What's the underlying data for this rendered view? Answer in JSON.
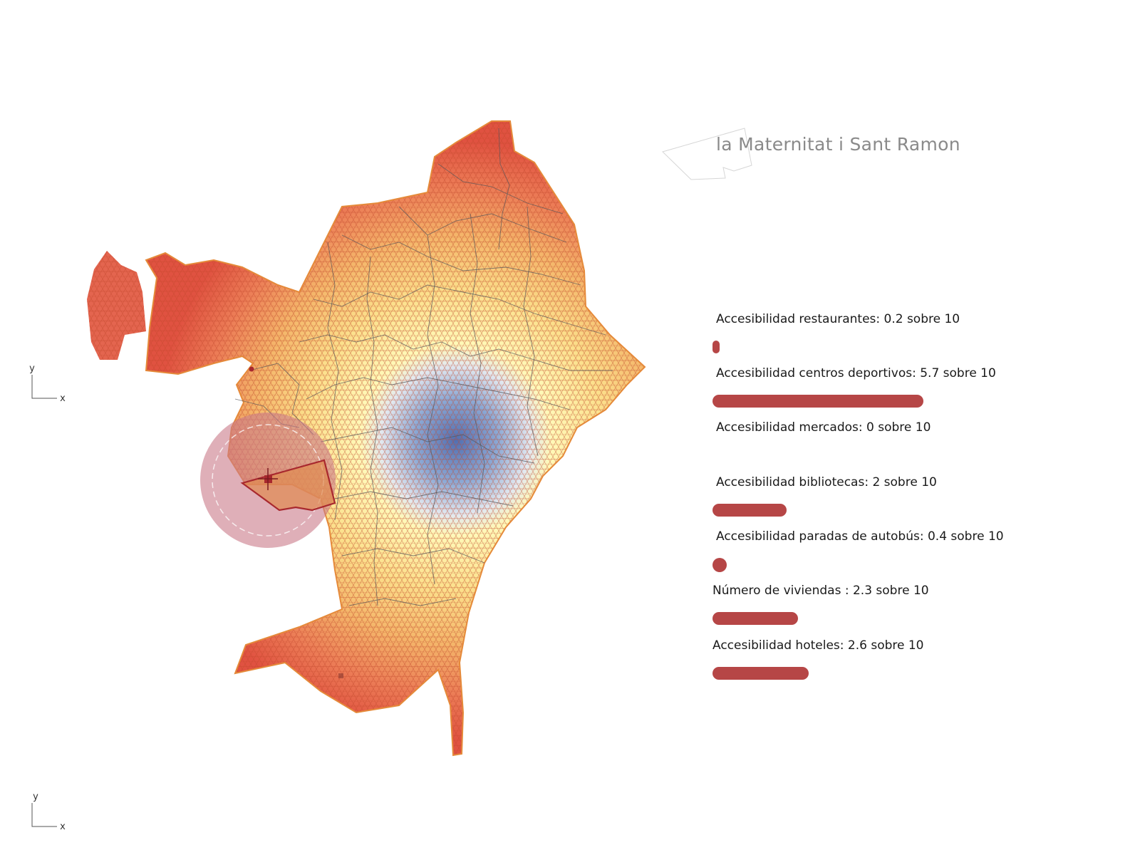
{
  "district": {
    "name": "la Maternitat i Sant Ramon"
  },
  "metrics": [
    {
      "label": "Accesibilidad restaurantes: 0.2 sobre 10",
      "value": 0.2,
      "max": 10
    },
    {
      "label": "Accesibilidad centros deportivos: 5.7 sobre 10",
      "value": 5.7,
      "max": 10
    },
    {
      "label": "Accesibilidad mercados: 0 sobre 10",
      "value": 0,
      "max": 10
    },
    {
      "label": "Accesibilidad bibliotecas: 2 sobre 10",
      "value": 2,
      "max": 10
    },
    {
      "label": "Accesibilidad paradas de autobús: 0.4 sobre 10",
      "value": 0.4,
      "max": 10
    },
    {
      "label": "Número de viviendas : 2.3 sobre 10",
      "value": 2.3,
      "max": 10
    },
    {
      "label": "Accesibilidad hoteles: 2.6 sobre 10",
      "value": 2.6,
      "max": 10
    }
  ],
  "axes": [
    {
      "y_label": "y",
      "x_label": "x"
    },
    {
      "y_label": "y",
      "x_label": "x"
    }
  ],
  "colors": {
    "bar": "#b64646",
    "accent_circle": "#c97a89",
    "district_outline": "#a8282e",
    "hex_low": "#e23a2b",
    "hex_mid": "#f4b84a",
    "hex_high": "#fff8a6",
    "hex_center": "#7da0d0"
  }
}
